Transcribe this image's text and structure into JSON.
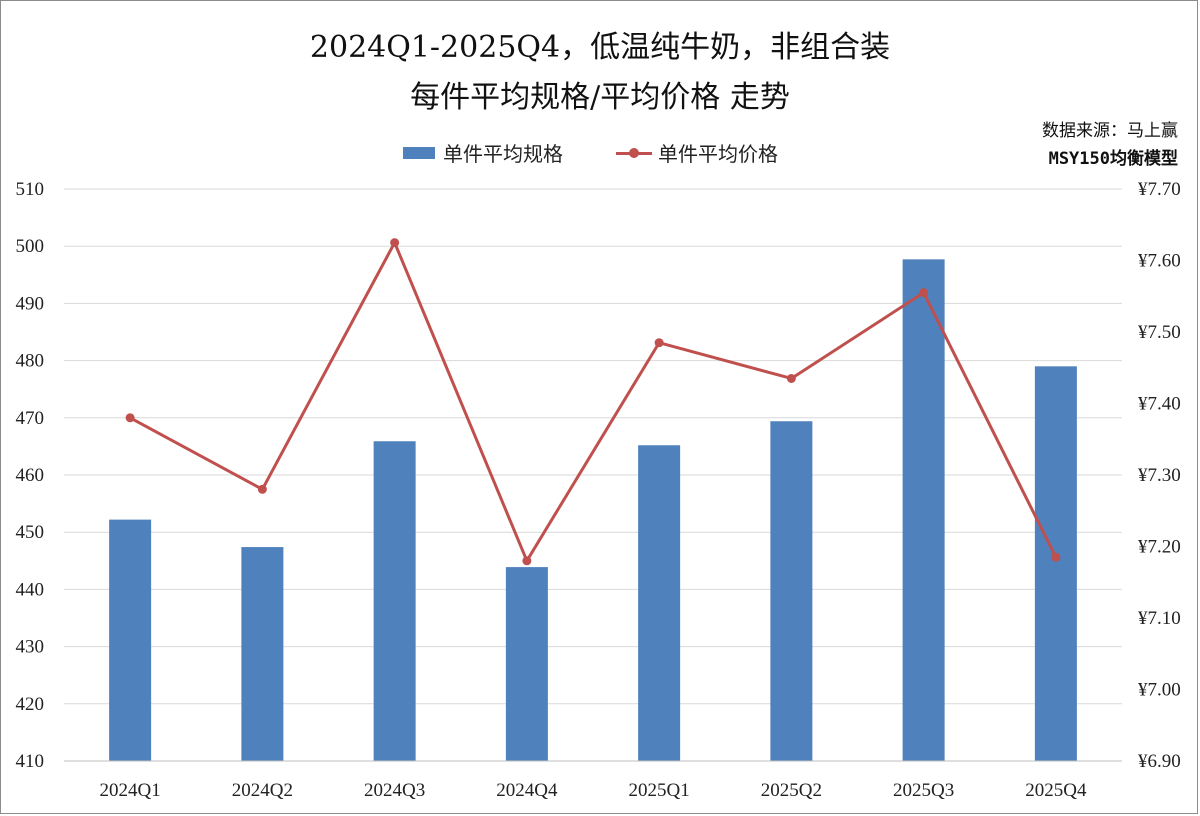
{
  "title_line1": "2024Q1-2025Q4，低温纯牛奶，非组合装",
  "title_line2": "每件平均规格/平均价格 走势",
  "source_line1": "数据来源：马上赢",
  "source_line2": "MSY150均衡模型",
  "colors": {
    "bar": "#4f81bd",
    "line": "#c0504d",
    "grid": "#d9d9d9",
    "axis": "#bfbfbf"
  },
  "chart_data": {
    "type": "bar",
    "categories": [
      "2024Q1",
      "2024Q2",
      "2024Q3",
      "2024Q4",
      "2025Q1",
      "2025Q2",
      "2025Q3",
      "2025Q4"
    ],
    "series": [
      {
        "name": "单件平均规格",
        "type": "bar",
        "axis": "left",
        "values": [
          452.2,
          447.4,
          465.9,
          443.9,
          465.2,
          469.4,
          497.7,
          479.0
        ]
      },
      {
        "name": "单件平均价格",
        "type": "line",
        "axis": "right",
        "values": [
          7.38,
          7.28,
          7.625,
          7.18,
          7.485,
          7.435,
          7.555,
          7.185
        ]
      }
    ],
    "y_left": {
      "min": 410,
      "max": 510,
      "step": 10,
      "ticks": [
        "410",
        "420",
        "430",
        "440",
        "450",
        "460",
        "470",
        "480",
        "490",
        "500",
        "510"
      ]
    },
    "y_right": {
      "min": 6.9,
      "max": 7.7,
      "step": 0.1,
      "ticks": [
        "¥6.90",
        "¥7.00",
        "¥7.10",
        "¥7.20",
        "¥7.30",
        "¥7.40",
        "¥7.50",
        "¥7.60",
        "¥7.70"
      ]
    },
    "grid": true,
    "legend_position": "top"
  }
}
